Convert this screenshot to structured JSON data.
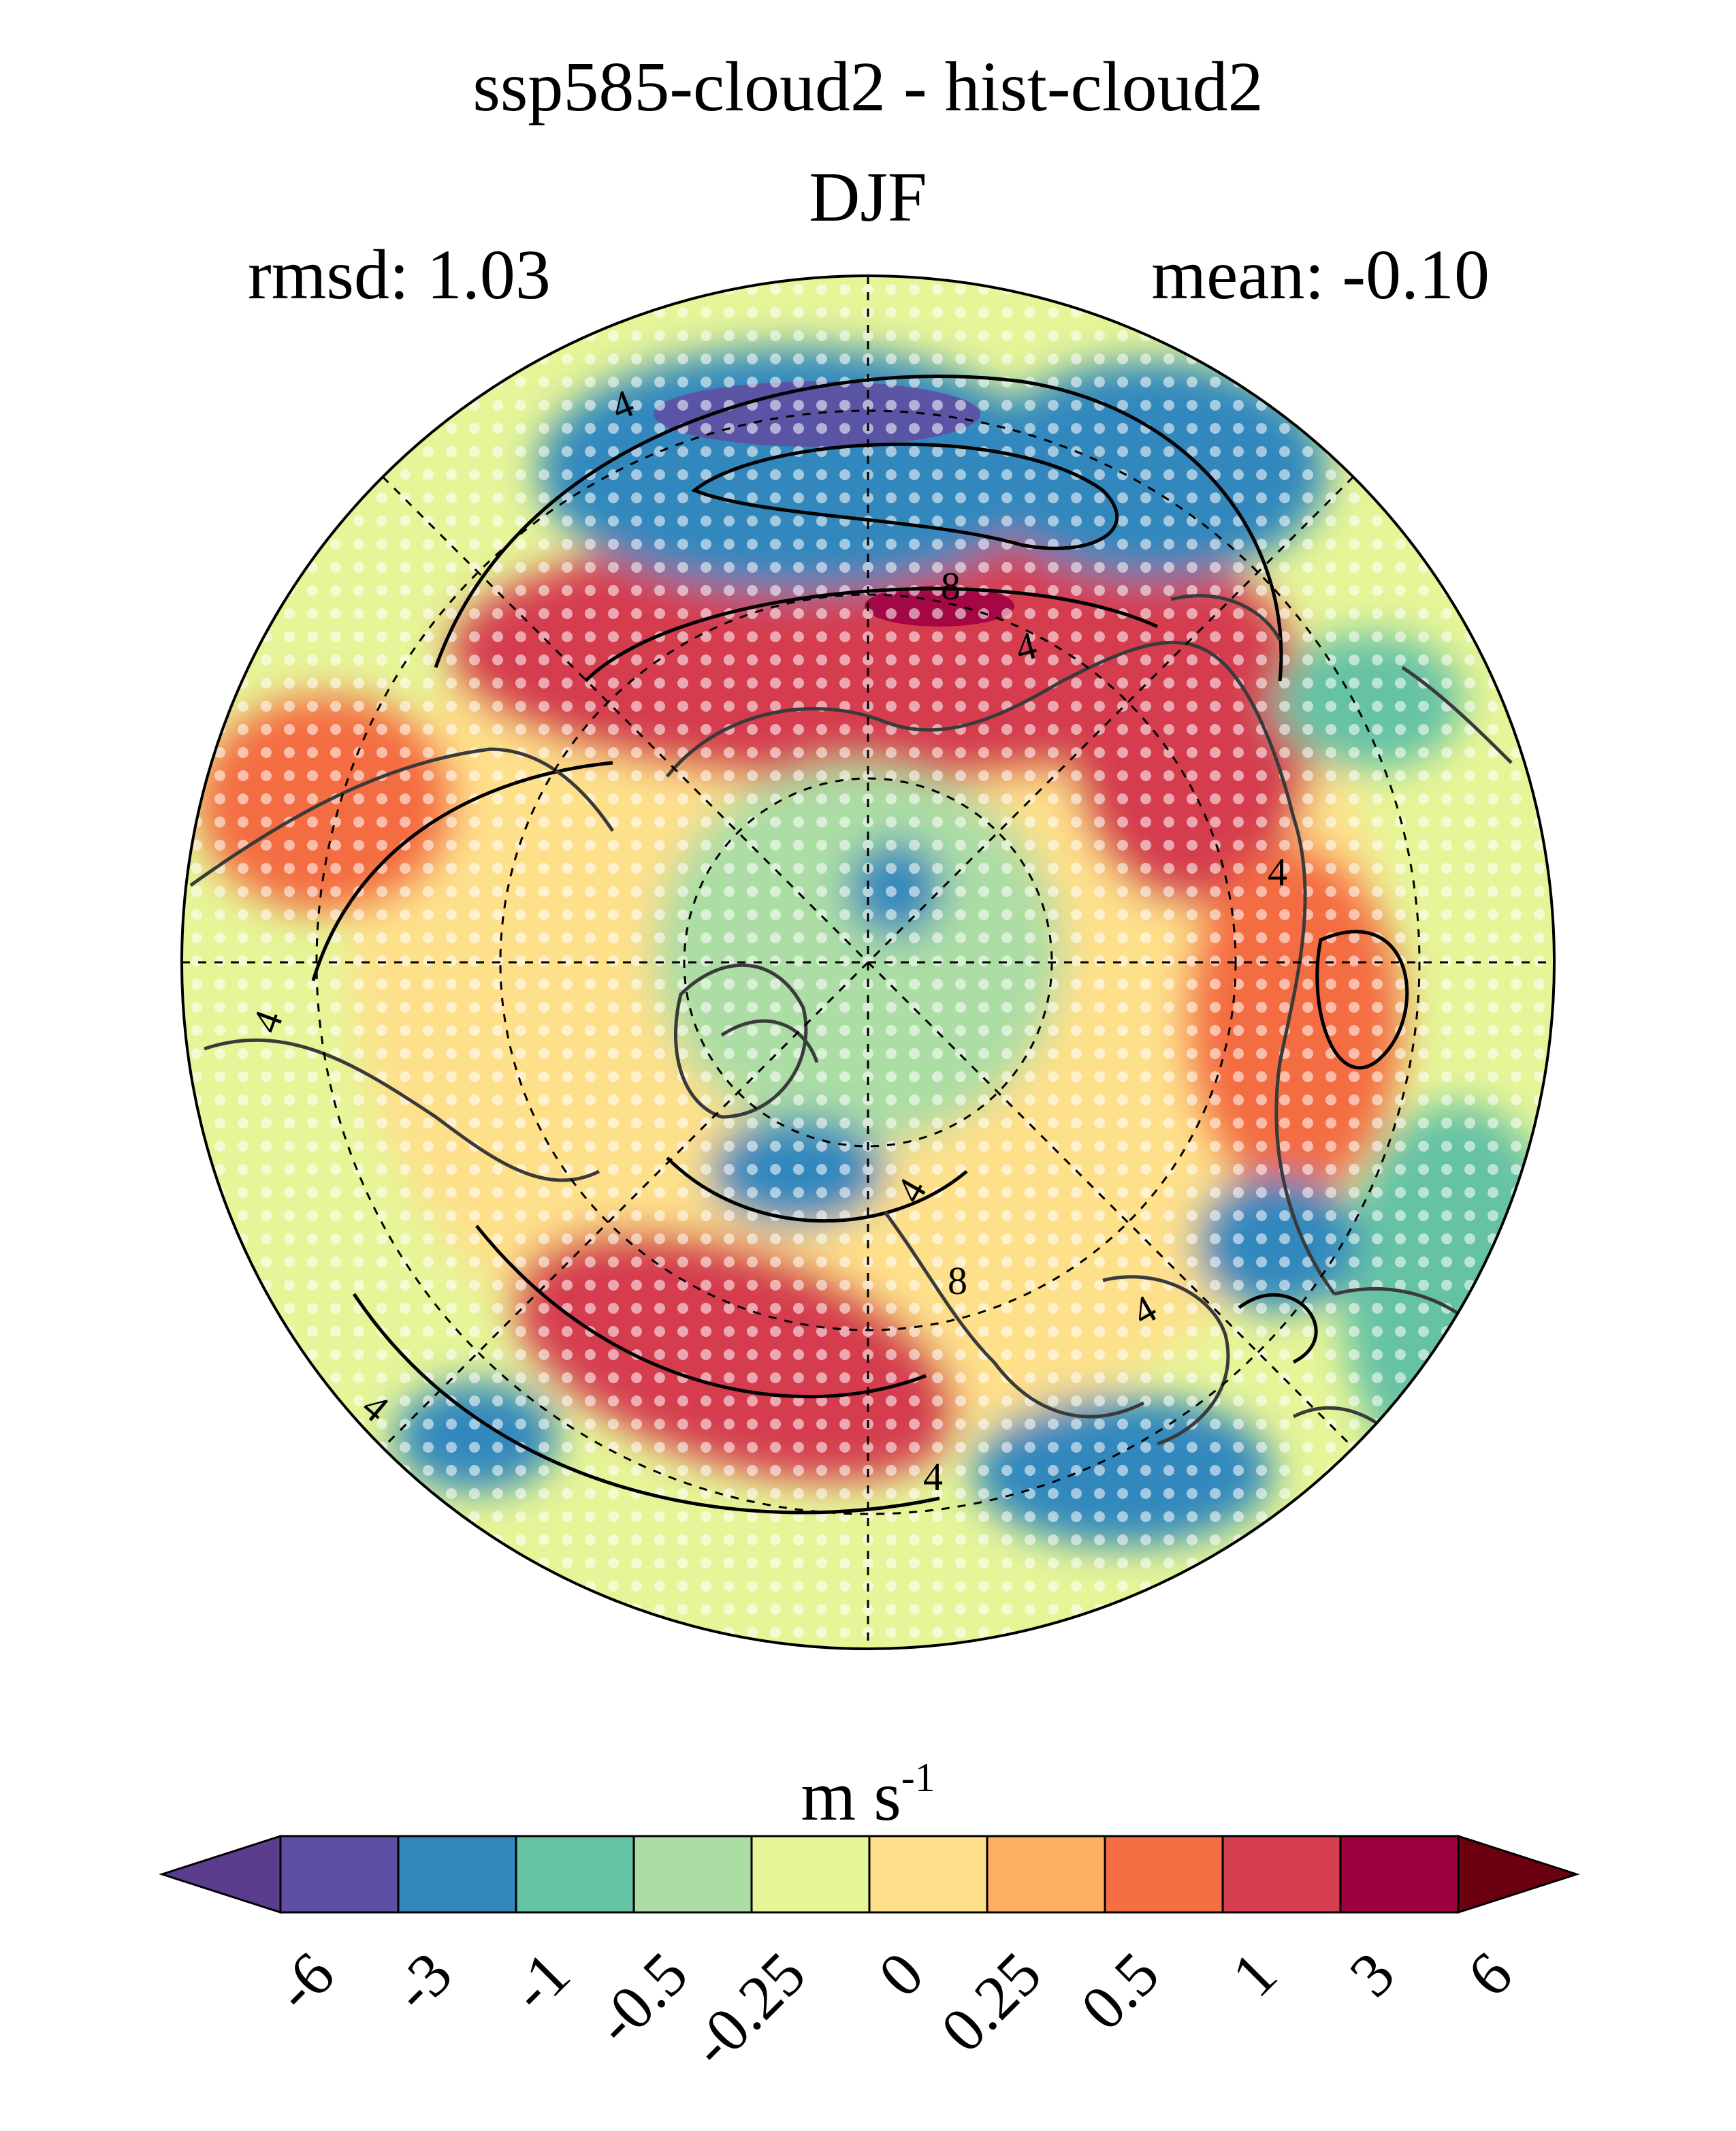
{
  "title": "ssp585-cloud2 - hist-cloud2",
  "season": "DJF",
  "stats": {
    "rmsd_label": "rmsd: 1.03",
    "mean_label": "mean: -0.10"
  },
  "map": {
    "projection": "north-polar-stereographic",
    "field": "difference",
    "stippling": "white dots",
    "contour_labels": [
      "4",
      "8",
      "4",
      "4",
      "4",
      "4",
      "8",
      "4",
      "4",
      "4"
    ]
  },
  "colorbar": {
    "unit_base": "m s",
    "unit_exp": "-1",
    "levels": [
      "-6",
      "-3",
      "-1",
      "-0.5",
      "-0.25",
      "0",
      "0.25",
      "0.5",
      "1",
      "3",
      "6"
    ],
    "colors": [
      "#5e4fa2",
      "#3288bd",
      "#66c2a5",
      "#abdda4",
      "#e6f598",
      "#fee08b",
      "#fdae61",
      "#f46d43",
      "#d53e4f",
      "#9e0142"
    ],
    "under_color": "#5a3d8c",
    "over_color": "#6a0010"
  }
}
